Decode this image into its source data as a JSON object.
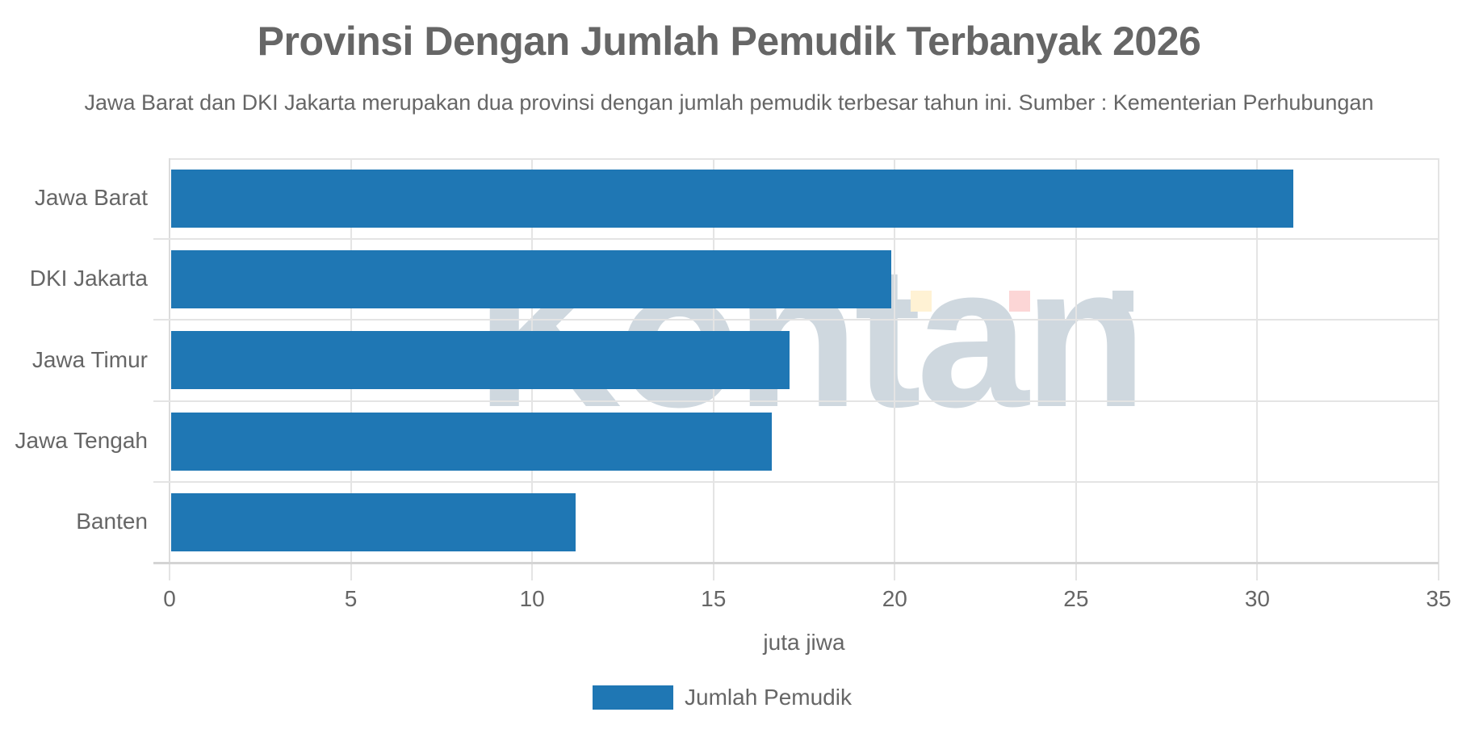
{
  "title": "Provinsi Dengan Jumlah Pemudik Terbanyak 2026",
  "subtitle": "Jawa Barat dan DKI Jakarta merupakan dua provinsi dengan jumlah pemudik terbesar tahun ini. Sumber : Kementerian Perhubungan",
  "watermark": {
    "text": "Kontan",
    "square_colors": [
      "#fff2d4",
      "#fcd6d6",
      "#cfd8df"
    ]
  },
  "colors": {
    "bar": "#1f77b4",
    "text": "#666666",
    "grid": "#e4e4e4"
  },
  "x_axis": {
    "title": "juta jiwa",
    "ticks": [
      "0",
      "5",
      "10",
      "15",
      "20",
      "25",
      "30",
      "35"
    ]
  },
  "legend": {
    "label": "Jumlah Pemudik"
  },
  "chart_data": {
    "type": "bar",
    "orientation": "horizontal",
    "title": "Provinsi Dengan Jumlah Pemudik Terbanyak 2026",
    "subtitle": "Jawa Barat dan DKI Jakarta merupakan dua provinsi dengan jumlah pemudik terbesar tahun ini. Sumber : Kementerian Perhubungan",
    "categories": [
      "Jawa Barat",
      "DKI Jakarta",
      "Jawa Timur",
      "Jawa Tengah",
      "Banten"
    ],
    "series": [
      {
        "name": "Jumlah Pemudik",
        "values": [
          31.0,
          19.9,
          17.1,
          16.6,
          11.2
        ],
        "color": "#1f77b4"
      }
    ],
    "xlabel": "juta jiwa",
    "ylabel": "",
    "xlim": [
      0,
      35
    ],
    "xticks": [
      0,
      5,
      10,
      15,
      20,
      25,
      30,
      35
    ],
    "grid": true,
    "legend_position": "bottom"
  }
}
